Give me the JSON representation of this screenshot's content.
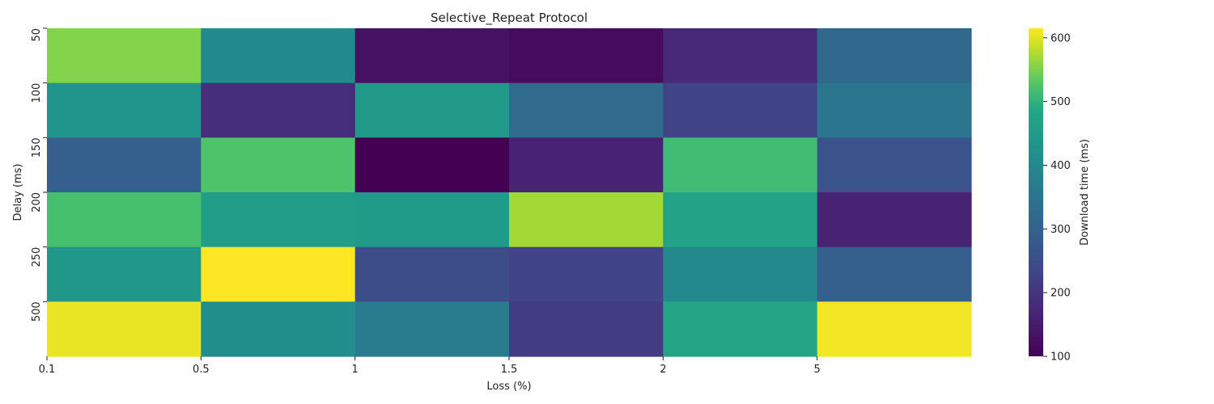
{
  "chart_data": {
    "type": "heatmap",
    "title": "Selective_Repeat Protocol",
    "xlabel": "Loss (%)",
    "ylabel": "Delay (ms)",
    "x_ticks": [
      "0.1",
      "0.5",
      "1",
      "1.5",
      "2",
      "5"
    ],
    "y_ticks": [
      "50",
      "100",
      "150",
      "200",
      "250",
      "500"
    ],
    "values": [
      [
        555,
        405,
        130,
        120,
        175,
        320
      ],
      [
        430,
        185,
        445,
        325,
        230,
        350
      ],
      [
        295,
        525,
        100,
        160,
        515,
        265
      ],
      [
        520,
        455,
        450,
        570,
        470,
        160
      ],
      [
        440,
        615,
        250,
        230,
        400,
        295
      ],
      [
        605,
        415,
        365,
        215,
        475,
        610
      ]
    ],
    "colorbar": {
      "label": "Download time (ms)",
      "range": [
        100,
        615
      ],
      "ticks": [
        100,
        200,
        300,
        400,
        500,
        600
      ]
    },
    "colormap": "viridis",
    "grid": false
  }
}
